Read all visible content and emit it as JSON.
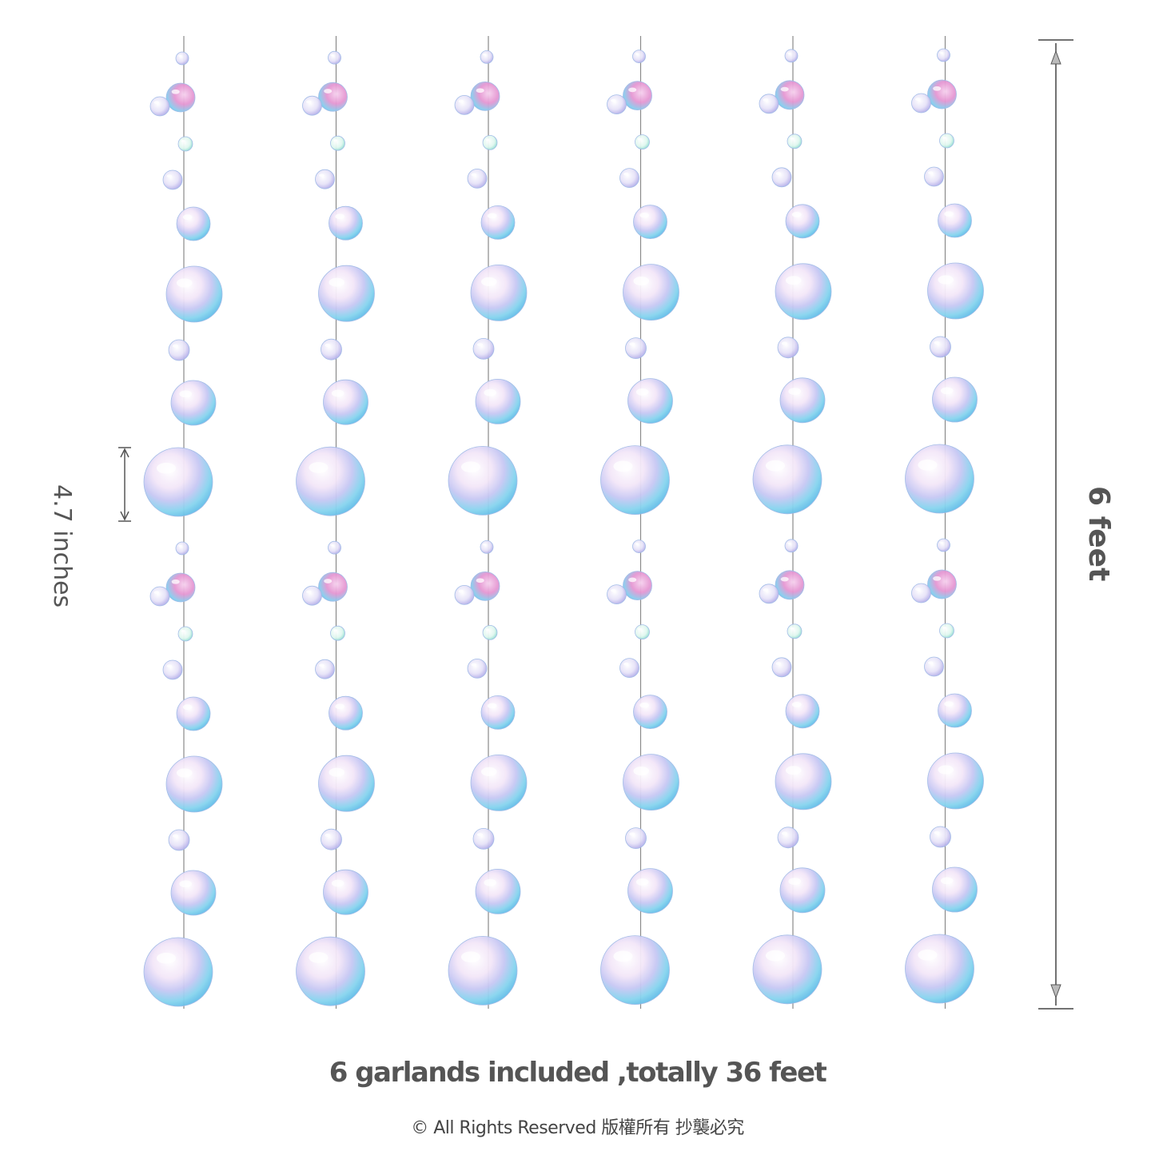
{
  "dimensions": {
    "bubble_size_label": "4.7 inches",
    "garland_length_label": "6 feet"
  },
  "product": {
    "garland_count": 6,
    "caption": "6 garlands included ,totally 36 feet"
  },
  "footer": {
    "copyright": "© All Rights Reserved 版權所有 抄襲必究"
  },
  "colors": {
    "text": "#555555",
    "string": "#8a8a8a",
    "bubble_cyan": "#6fd3ee",
    "bubble_pink": "#e58fd0",
    "bubble_violet": "#a9a6ee"
  }
}
